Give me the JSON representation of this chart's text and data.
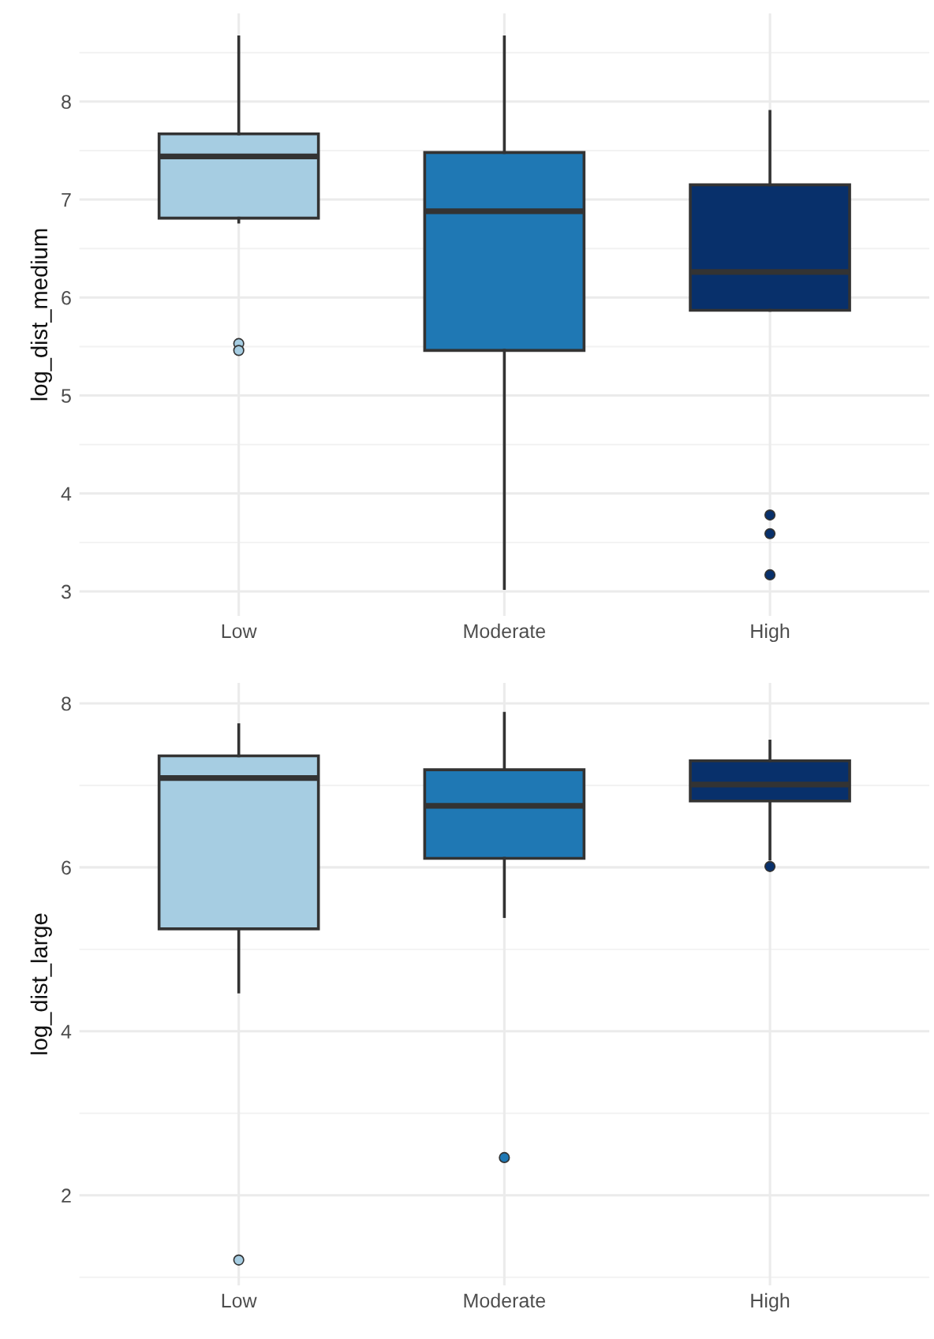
{
  "chart_data": [
    {
      "type": "box",
      "ylabel": "log_dist_medium",
      "categories": [
        "Low",
        "Moderate",
        "High"
      ],
      "ylim": [
        2.75,
        8.9
      ],
      "yticks": [
        3,
        4,
        5,
        6,
        7,
        8
      ],
      "grid": true,
      "legend": false,
      "colors": [
        "#a6cde2",
        "#1f78b4",
        "#08306b"
      ],
      "boxes": [
        {
          "low": 6.77,
          "q1": 6.81,
          "median": 7.44,
          "q3": 7.67,
          "high": 8.66,
          "outliers": [
            5.53,
            5.46
          ]
        },
        {
          "low": 3.03,
          "q1": 5.46,
          "median": 6.88,
          "q3": 7.48,
          "high": 8.66
        },
        {
          "low": 5.87,
          "q1": 5.87,
          "median": 6.26,
          "q3": 7.15,
          "high": 7.9,
          "outliers": [
            3.78,
            3.59,
            3.17
          ]
        }
      ]
    },
    {
      "type": "box",
      "ylabel": "log_dist_large",
      "categories": [
        "Low",
        "Moderate",
        "High"
      ],
      "ylim": [
        0.9,
        8.25
      ],
      "yticks": [
        2,
        4,
        6,
        8
      ],
      "grid": true,
      "legend": false,
      "colors": [
        "#a6cde2",
        "#1f78b4",
        "#08306b"
      ],
      "boxes": [
        {
          "low": 4.48,
          "q1": 5.25,
          "median": 7.09,
          "q3": 7.36,
          "high": 7.74,
          "outliers": [
            1.21
          ]
        },
        {
          "low": 5.4,
          "q1": 6.11,
          "median": 6.75,
          "q3": 7.19,
          "high": 7.88,
          "outliers": [
            2.46
          ]
        },
        {
          "low": 6.1,
          "q1": 6.81,
          "median": 7.01,
          "q3": 7.3,
          "high": 7.54,
          "outliers": [
            6.01
          ]
        }
      ]
    }
  ]
}
